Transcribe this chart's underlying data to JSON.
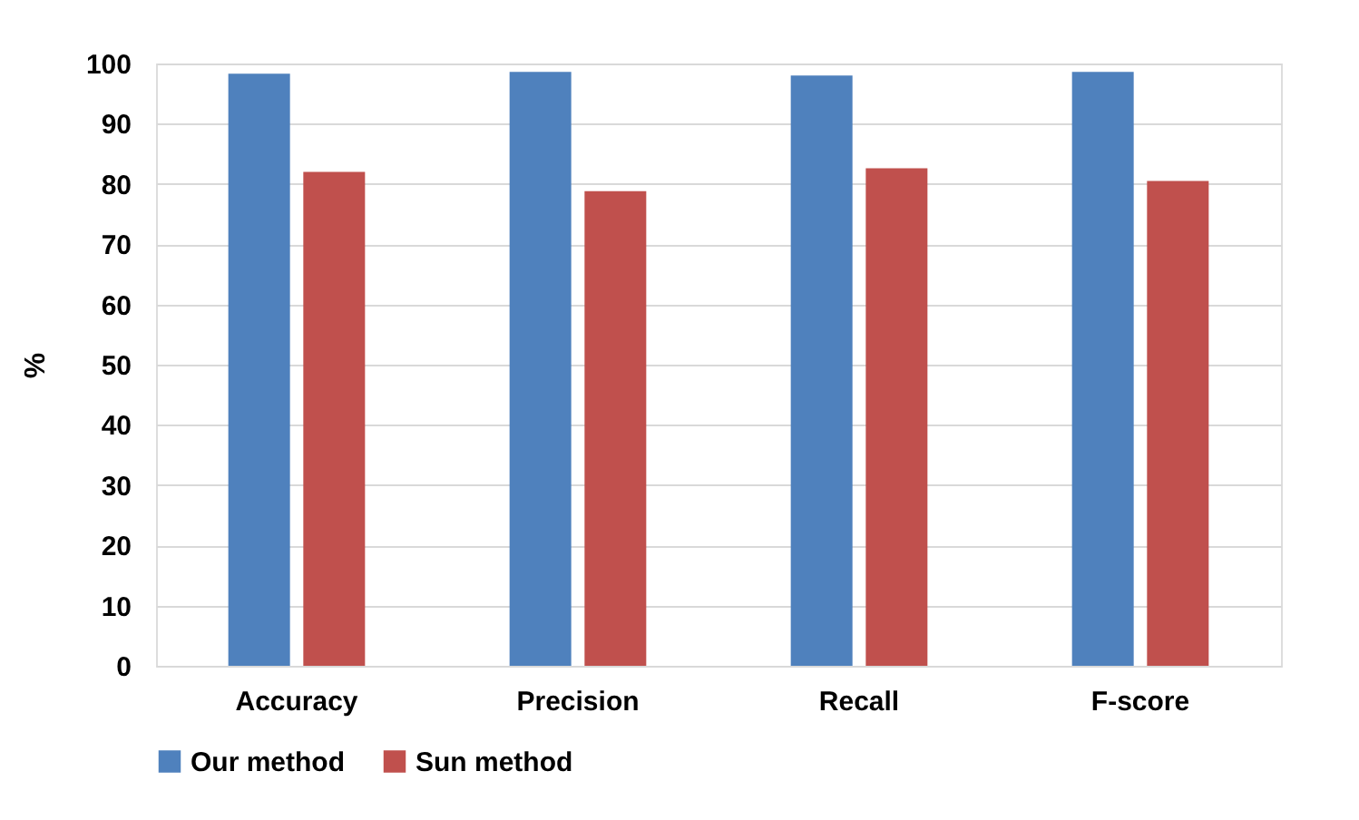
{
  "chart_data": {
    "type": "bar",
    "ylabel": "%",
    "categories": [
      "Accuracy",
      "Precision",
      "Recall",
      "F-score"
    ],
    "series": [
      {
        "name": "Our method",
        "color": "#4f81bd",
        "values": [
          98.3,
          98.6,
          98.0,
          98.6
        ]
      },
      {
        "name": "Sun method",
        "color": "#c0504d",
        "values": [
          82.0,
          78.8,
          82.6,
          80.5
        ]
      }
    ],
    "ylim": [
      0,
      100
    ],
    "yticks": [
      0,
      10,
      20,
      30,
      40,
      50,
      60,
      70,
      80,
      90,
      100
    ],
    "grid": "y",
    "legend": "bottom"
  }
}
